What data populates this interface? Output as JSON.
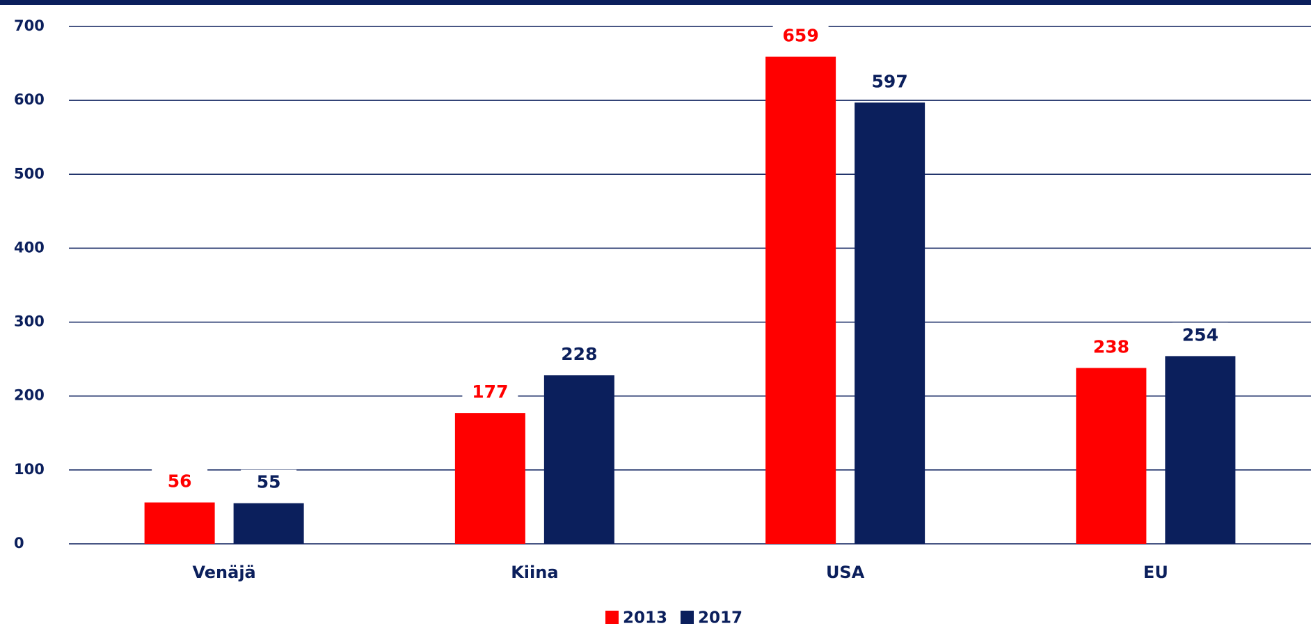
{
  "chart_data": {
    "type": "bar",
    "categories": [
      "Venäjä",
      "Kiina",
      "USA",
      "EU"
    ],
    "series": [
      {
        "name": "2013",
        "color": "#ff0000",
        "values": [
          56,
          177,
          659,
          238
        ]
      },
      {
        "name": "2017",
        "color": "#0b1f5c",
        "values": [
          55,
          228,
          597,
          254
        ]
      }
    ],
    "ylim": [
      0,
      700
    ],
    "yticks": [
      0,
      100,
      200,
      300,
      400,
      500,
      600,
      700
    ],
    "grid": true,
    "legend": "bottom"
  }
}
